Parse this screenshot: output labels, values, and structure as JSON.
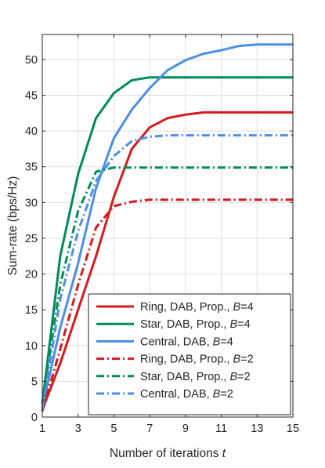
{
  "chart_data": {
    "type": "line",
    "title": "",
    "xlabel": "Number of iterations ",
    "xlabel_var": "t",
    "ylabel": "Sum-rate (bps/Hz)",
    "xlim": [
      1,
      15
    ],
    "ylim": [
      0,
      53.5
    ],
    "xticks": [
      1,
      3,
      5,
      7,
      9,
      11,
      13,
      15
    ],
    "yticks": [
      0,
      5,
      10,
      15,
      20,
      25,
      30,
      35,
      40,
      45,
      50
    ],
    "grid": true,
    "legend_position": "bottom-right",
    "x": [
      1,
      2,
      3,
      4,
      5,
      6,
      7,
      8,
      9,
      10,
      11,
      12,
      13,
      14,
      15
    ],
    "series": [
      {
        "name_prefix": "Ring, DAB, Prop., ",
        "name_var": "B",
        "name_suffix": "=4",
        "color": "#d7191c",
        "dash": "solid",
        "values": [
          1.0,
          7.5,
          15.0,
          22.5,
          30.8,
          37.5,
          40.5,
          41.8,
          42.3,
          42.6,
          42.6,
          42.6,
          42.6,
          42.6,
          42.6
        ]
      },
      {
        "name_prefix": "Star, DAB, Prop., ",
        "name_var": "B",
        "name_suffix": "=4",
        "color": "#008c5a",
        "dash": "solid",
        "values": [
          1.8,
          22.5,
          34.0,
          41.8,
          45.3,
          47.1,
          47.5,
          47.5,
          47.5,
          47.5,
          47.5,
          47.5,
          47.5,
          47.5,
          47.5
        ]
      },
      {
        "name_prefix": "Central, DAB, ",
        "name_var": "B",
        "name_suffix": "=4",
        "color": "#4a8fe7",
        "dash": "solid",
        "values": [
          1.3,
          12.5,
          21.5,
          32.0,
          39.0,
          43.0,
          46.0,
          48.5,
          49.9,
          50.8,
          51.3,
          51.9,
          52.1,
          52.1,
          52.1
        ]
      },
      {
        "name_prefix": "Ring, DAB, Prop., ",
        "name_var": "B",
        "name_suffix": "=2",
        "color": "#d7191c",
        "dash": "dashdot",
        "values": [
          0.8,
          9.5,
          18.5,
          26.5,
          29.5,
          30.1,
          30.4,
          30.4,
          30.4,
          30.4,
          30.4,
          30.4,
          30.4,
          30.4,
          30.4
        ]
      },
      {
        "name_prefix": "Star, DAB, Prop., ",
        "name_var": "B",
        "name_suffix": "=2",
        "color": "#008c5a",
        "dash": "dashdot",
        "values": [
          2.0,
          18.5,
          28.8,
          34.3,
          34.9,
          34.9,
          34.9,
          34.9,
          34.9,
          34.9,
          34.9,
          34.9,
          34.9,
          34.9,
          34.9
        ]
      },
      {
        "name_prefix": "Central, DAB, ",
        "name_var": "B",
        "name_suffix": "=2",
        "color": "#4a8fe7",
        "dash": "dashdot",
        "values": [
          1.0,
          16.5,
          26.0,
          33.0,
          36.5,
          38.6,
          39.2,
          39.4,
          39.4,
          39.4,
          39.4,
          39.4,
          39.4,
          39.4,
          39.4
        ]
      }
    ]
  }
}
